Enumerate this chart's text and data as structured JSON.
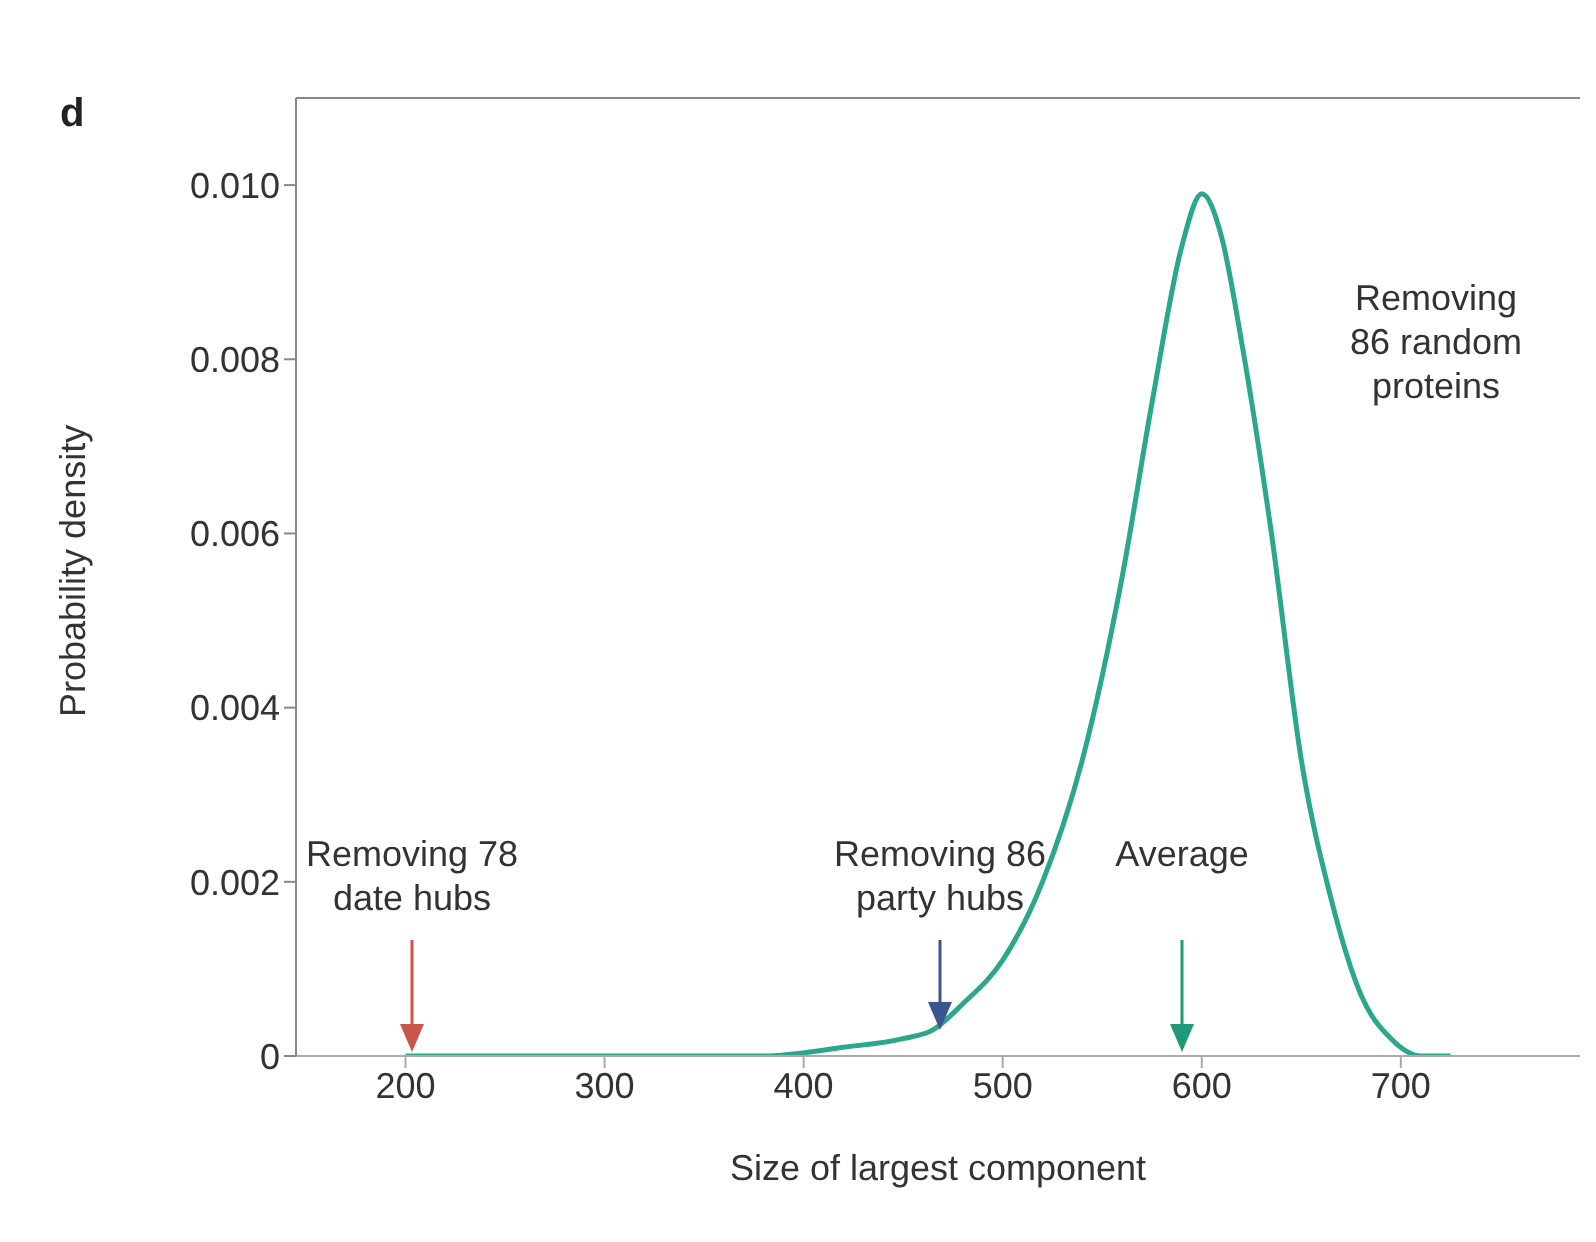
{
  "chart_data": {
    "type": "line",
    "xlabel": "Size of largest component",
    "ylabel": "Probability density",
    "xlim": [
      145,
      790
    ],
    "xticks": [
      200,
      300,
      400,
      500,
      600,
      700
    ],
    "ylim": [
      0,
      0.011
    ],
    "yticks": [
      0,
      0.002,
      0.004,
      0.006,
      {
        "value": 0.01,
        "label": "0.010"
      },
      0.008
    ],
    "grid": false,
    "legend": false,
    "marker": "none",
    "line_style": "solid",
    "series": [
      {
        "color": "#2aa889",
        "x": [
          200,
          250,
          300,
          350,
          380,
          420,
          450,
          465,
          480,
          500,
          520,
          540,
          560,
          575,
          590,
          600,
          610,
          620,
          635,
          650,
          665,
          680,
          695,
          710,
          725
        ],
        "values": [
          0,
          0,
          0,
          0,
          0,
          0.0001,
          0.0002,
          0.0003,
          0.0006,
          0.0011,
          0.002,
          0.0034,
          0.0055,
          0.0075,
          0.0093,
          0.0099,
          0.0094,
          0.0082,
          0.006,
          0.0034,
          0.0018,
          0.0007,
          0.0002,
          0,
          0
        ]
      }
    ],
    "annotations": [
      "d",
      "Removing\n86 random\nproteins",
      "Removing 78\ndate hubs",
      "Removing 86\nparty hubs",
      "Average"
    ]
  }
}
